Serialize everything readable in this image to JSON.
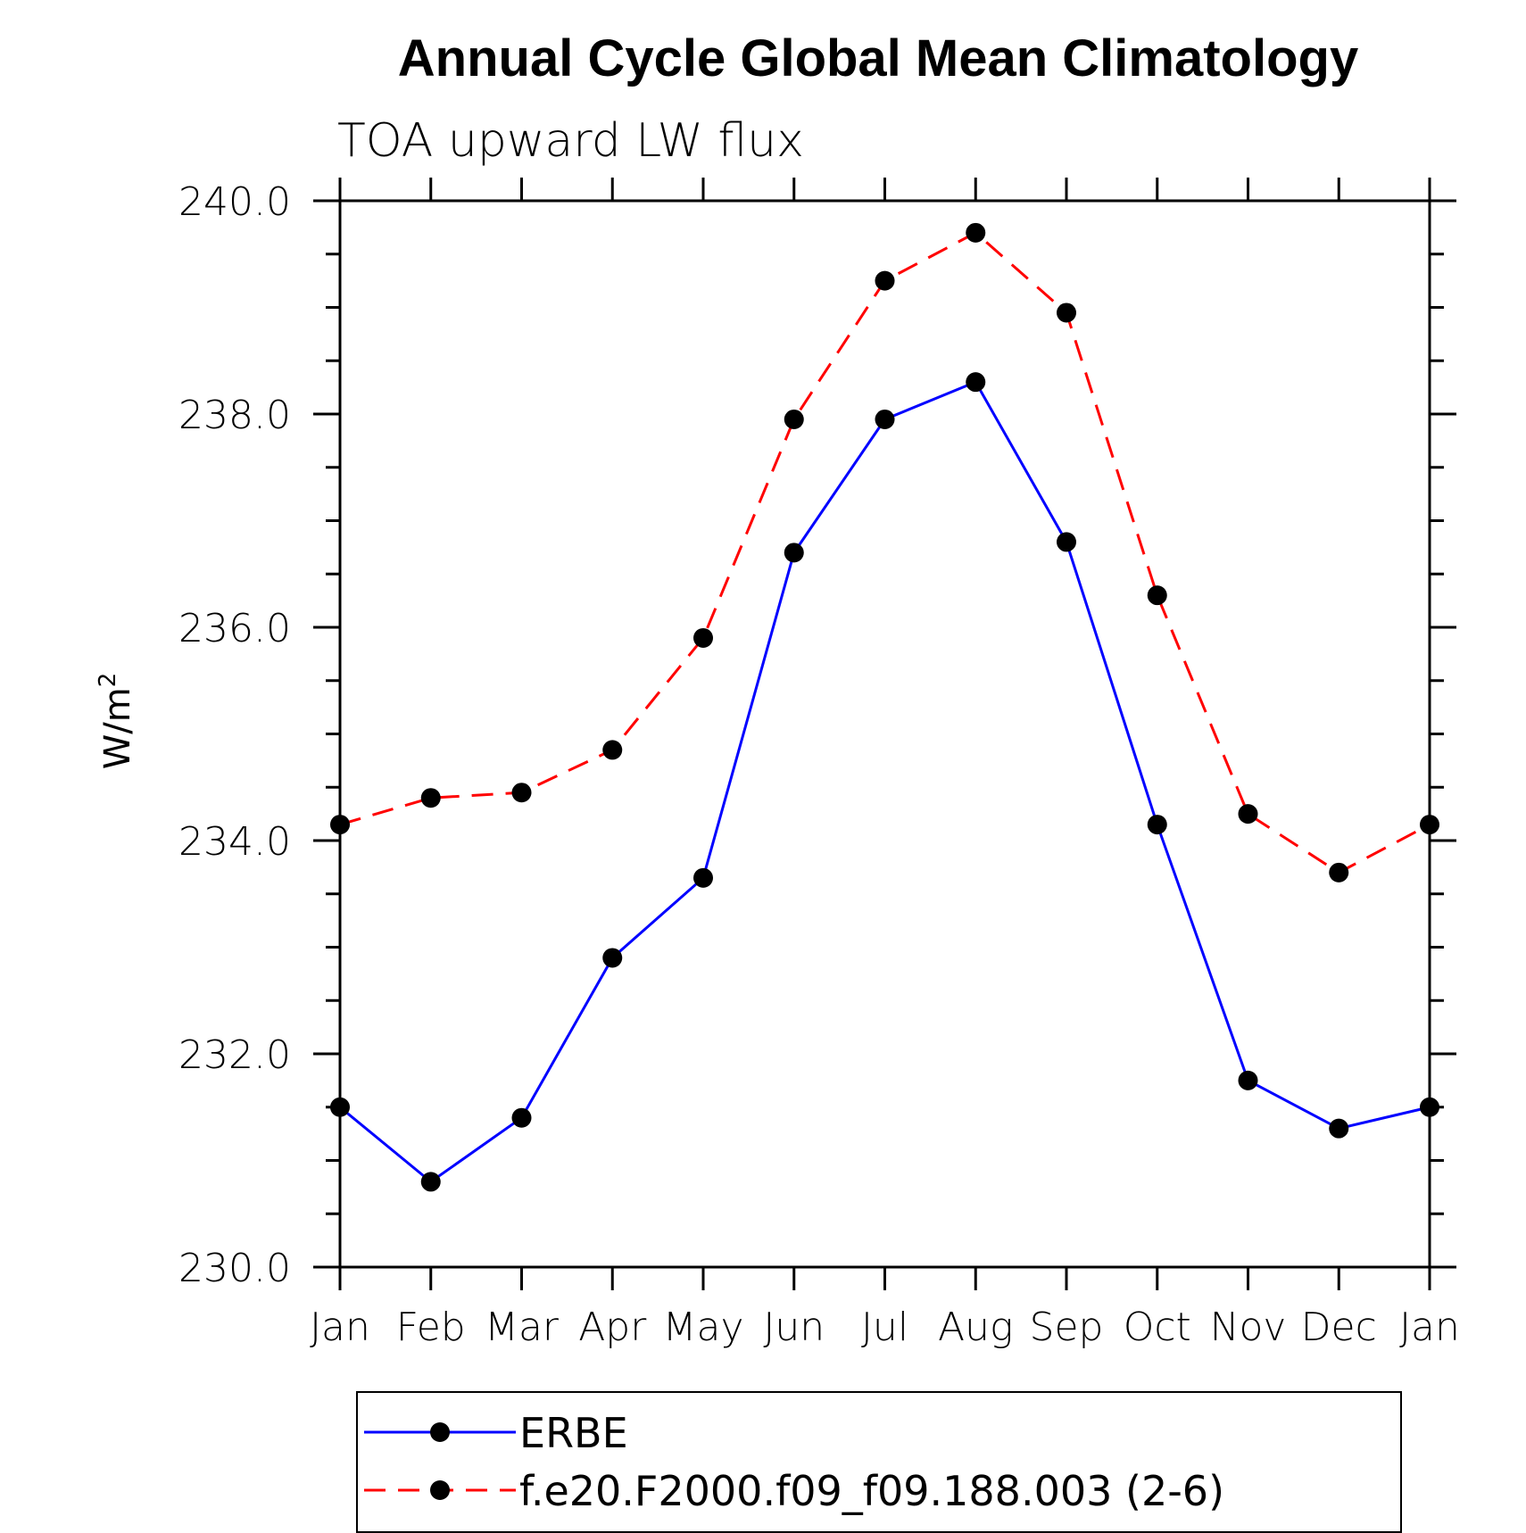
{
  "chart_data": {
    "type": "line",
    "title": "Annual Cycle Global Mean Climatology",
    "subtitle": "TOA upward LW flux",
    "ylabel": "W/m",
    "ylabel_superscript": "2",
    "xlabel": "",
    "categories": [
      "Jan",
      "Feb",
      "Mar",
      "Apr",
      "May",
      "Jun",
      "Jul",
      "Aug",
      "Sep",
      "Oct",
      "Nov",
      "Dec",
      "Jan"
    ],
    "ylim": [
      230.0,
      240.0
    ],
    "yticks": [
      "230.0",
      "232.0",
      "234.0",
      "236.0",
      "238.0",
      "240.0"
    ],
    "grid": false,
    "legend_position": "bottom",
    "series": [
      {
        "name": "ERBE",
        "color": "#0000ff",
        "style": "solid",
        "values": [
          231.5,
          230.8,
          231.4,
          232.9,
          233.65,
          236.7,
          237.95,
          238.3,
          236.8,
          234.15,
          231.75,
          231.3,
          231.5
        ]
      },
      {
        "name": "f.e20.F2000.f09_f09.188.003 (2-6)",
        "color": "#ff0000",
        "style": "dashed",
        "values": [
          234.15,
          234.4,
          234.45,
          234.85,
          235.9,
          237.95,
          239.25,
          239.7,
          238.95,
          236.3,
          234.25,
          233.7,
          234.15
        ]
      }
    ]
  }
}
